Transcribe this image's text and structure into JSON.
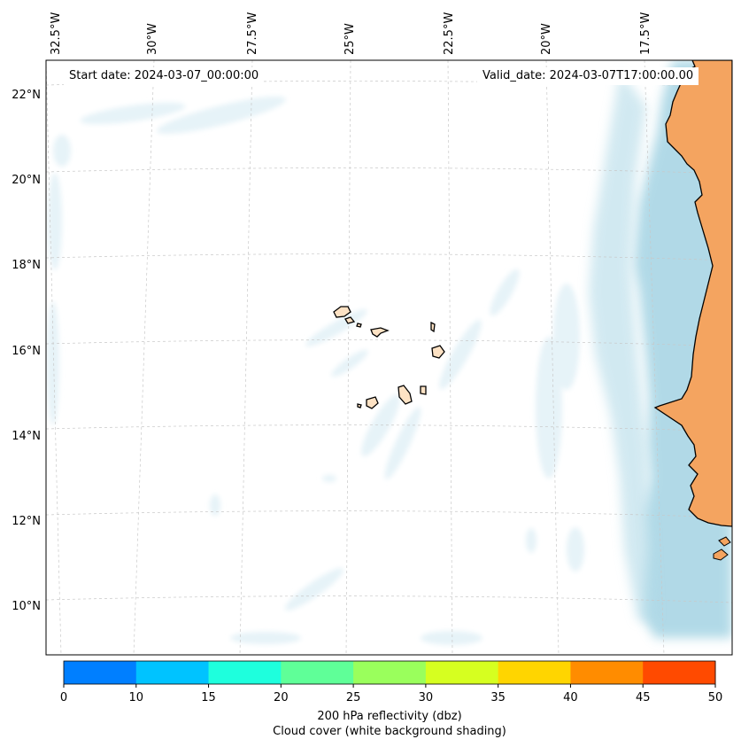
{
  "map": {
    "start_date": "Start date: 2024-03-07_00:00:00",
    "valid_date": "Valid_date: 2024-03-07T17:00:00.00",
    "lon_labels": [
      "32.5°W",
      "30°W",
      "27.5°W",
      "25°W",
      "22.5°W",
      "20°W",
      "17.5°W"
    ],
    "lat_labels": [
      "22°N",
      "20°N",
      "18°N",
      "16°N",
      "14°N",
      "12°N",
      "10°N"
    ],
    "colors": {
      "land": "#f4a460",
      "ocean_shading": "#add8e6",
      "cloud_shading": "#e6f3f8",
      "gridline": "#c8c8c8"
    }
  },
  "colorbar": {
    "ticks": [
      "0",
      "10",
      "15",
      "20",
      "25",
      "30",
      "35",
      "40",
      "45",
      "50"
    ],
    "colors": [
      "#007fff",
      "#00c3ff",
      "#1effdd",
      "#5fff98",
      "#9aff5c",
      "#d6ff20",
      "#ffd500",
      "#ff8c00",
      "#ff4a00"
    ],
    "label_line1": "200 hPa reflectivity (dbz)",
    "label_line2": "Cloud cover (white background shading)"
  }
}
